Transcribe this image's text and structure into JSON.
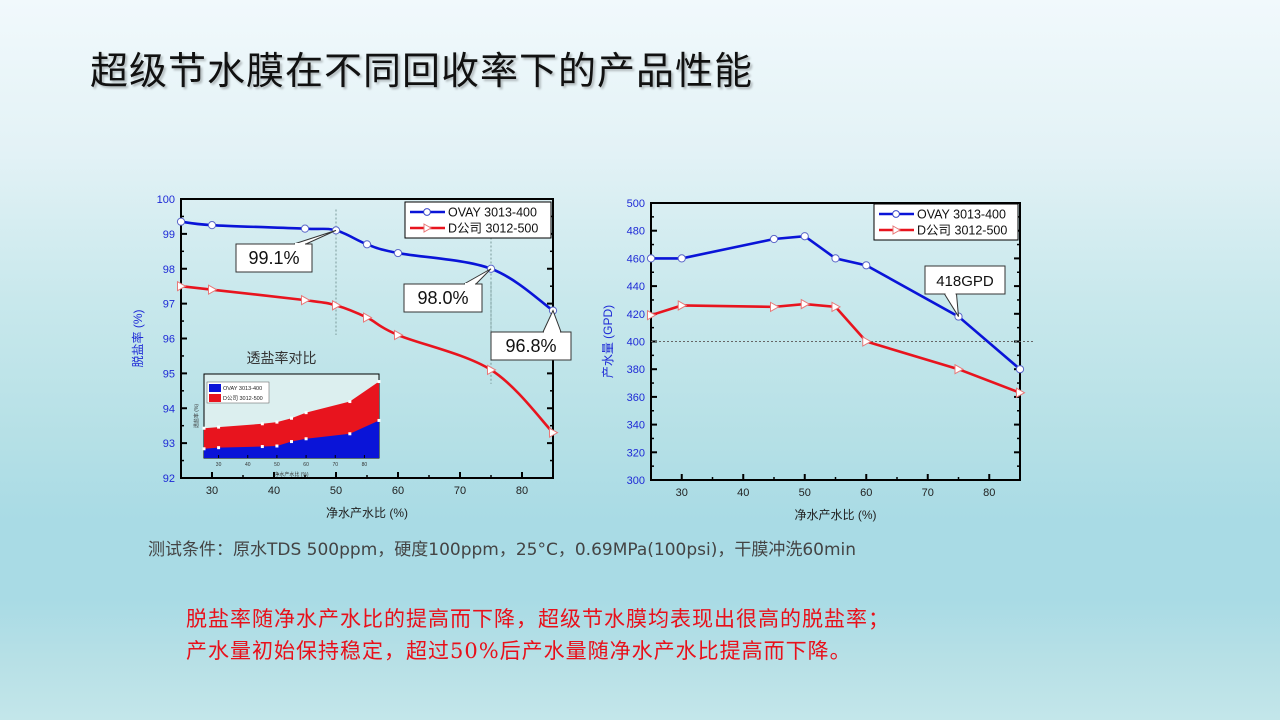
{
  "slide": {
    "title": "超级节水膜在不同回收率下的产品性能",
    "test_conditions": "测试条件：原水TDS 500ppm，硬度100ppm，25°C，0.69MPa(100psi)，干膜冲洗60min",
    "conclusion_line1": "脱盐率随净水产水比的提高而下降，超级节水膜均表现出很高的脱盐率；",
    "conclusion_line2": "产水量初始保持稳定，超过50%后产水量随净水产水比提高而下降。"
  },
  "colors": {
    "blue": "#0a14d8",
    "red": "#e8141e",
    "axis_label": "#1e2ad6"
  },
  "chart_data": [
    {
      "type": "line",
      "xlabel": "净水产水比 (%)",
      "ylabel": "脱盐率 (%)",
      "xlim": [
        25,
        85
      ],
      "ylim": [
        92,
        100
      ],
      "xticks": [
        "30",
        "40",
        "50",
        "60",
        "70",
        "80"
      ],
      "yticks": [
        "92",
        "93",
        "94",
        "95",
        "96",
        "97",
        "98",
        "99",
        "100"
      ],
      "legend": "top-right",
      "x": [
        25,
        30,
        45,
        50,
        55,
        60,
        75,
        85
      ],
      "series": [
        {
          "name": "OVAY 3013-400",
          "marker": "circle",
          "values": [
            99.35,
            99.25,
            99.15,
            99.1,
            98.7,
            98.45,
            98.0,
            96.8
          ]
        },
        {
          "name": "D公司 3012-500",
          "marker": "triangle-right",
          "values": [
            97.5,
            97.4,
            97.1,
            96.95,
            96.6,
            96.1,
            95.1,
            93.3
          ]
        }
      ],
      "annotations": [
        {
          "text": "99.1%",
          "x": 50,
          "y": 99.1
        },
        {
          "text": "98.0%",
          "x": 75,
          "y": 98.0
        },
        {
          "text": "96.8%",
          "x": 85,
          "y": 96.8
        }
      ],
      "inset": {
        "title": "透盐率对比",
        "type": "area",
        "xlabel": "净水产水比 (%)",
        "ylabel": "透盐率 (%)",
        "xticks": [
          "30",
          "40",
          "50",
          "60",
          "70",
          "80"
        ],
        "x": [
          25,
          30,
          45,
          50,
          55,
          60,
          75,
          85
        ],
        "series": [
          {
            "name": "OVAY 3013-400",
            "values": [
              0.65,
              0.75,
              0.85,
              0.9,
              1.3,
              1.55,
              2.0,
              3.2
            ]
          },
          {
            "name": "D公司 3012-500",
            "values": [
              2.5,
              2.6,
              2.9,
              3.05,
              3.4,
              3.9,
              4.9,
              6.7
            ]
          }
        ]
      }
    },
    {
      "type": "line",
      "xlabel": "净水产水比 (%)",
      "ylabel": "产水量 (GPD)",
      "xlim": [
        25,
        85
      ],
      "ylim": [
        300,
        500
      ],
      "xticks": [
        "30",
        "40",
        "50",
        "60",
        "70",
        "80"
      ],
      "yticks": [
        "300",
        "320",
        "340",
        "360",
        "380",
        "400",
        "420",
        "440",
        "460",
        "480",
        "500"
      ],
      "legend": "top-right",
      "reference_line": 400,
      "x": [
        25,
        30,
        45,
        50,
        55,
        60,
        75,
        85
      ],
      "series": [
        {
          "name": "OVAY 3013-400",
          "marker": "circle",
          "values": [
            460,
            460,
            474,
            476,
            460,
            455,
            418,
            380
          ]
        },
        {
          "name": "D公司 3012-500",
          "marker": "triangle-right",
          "values": [
            419,
            426,
            425,
            427,
            425,
            400,
            380,
            363
          ]
        }
      ],
      "annotations": [
        {
          "text": "418GPD",
          "x": 75,
          "y": 418
        }
      ]
    }
  ]
}
